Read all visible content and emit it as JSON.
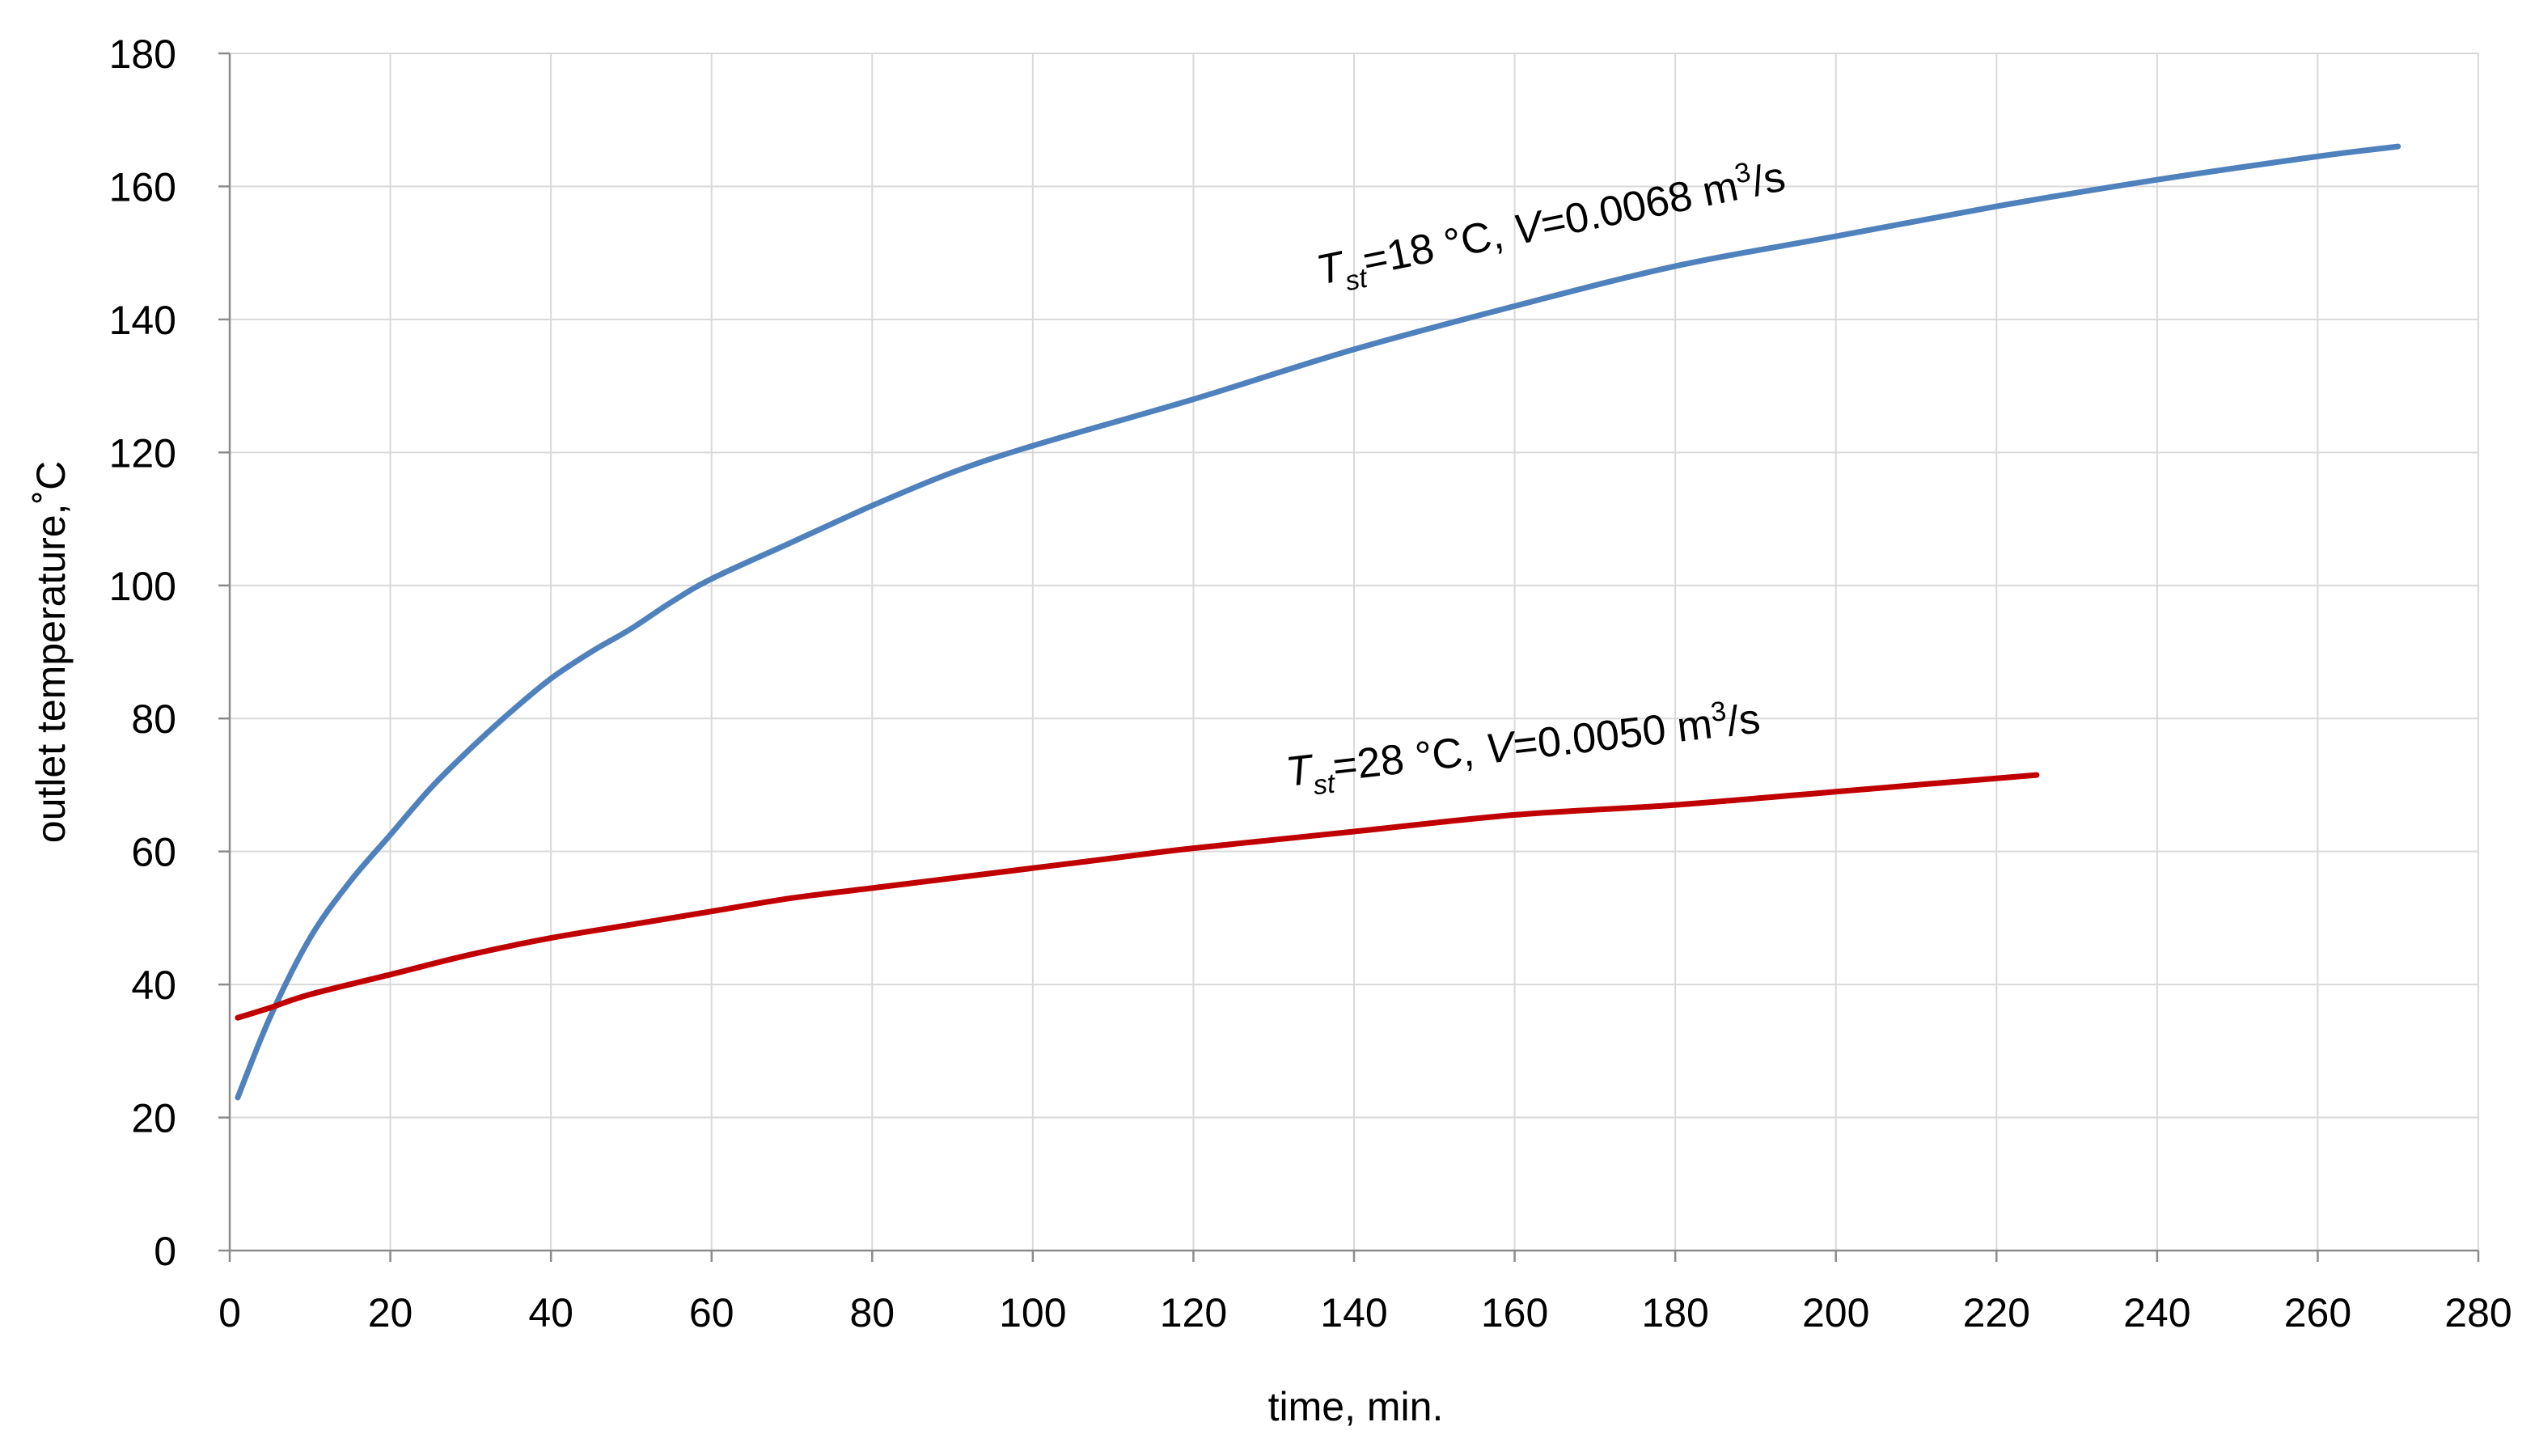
{
  "chart_data": {
    "type": "line",
    "xlabel": "time, min.",
    "ylabel": "outlet temperature,˚C",
    "xlim": [
      0,
      280
    ],
    "ylim": [
      0,
      180
    ],
    "xticks": [
      0,
      20,
      40,
      60,
      80,
      100,
      120,
      140,
      160,
      180,
      200,
      220,
      240,
      260,
      280
    ],
    "yticks": [
      0,
      20,
      40,
      60,
      80,
      100,
      120,
      140,
      160,
      180
    ],
    "grid": true,
    "series": [
      {
        "name": "Tst=18 °C, V=0.0068 m3/s",
        "color": "#4f81bd",
        "label": {
          "T": "T",
          "sub": "st",
          "mid": "=18 °C, ",
          "V": "V",
          "rest": "=0.0068 m",
          "sup": "3",
          "unit": "/s"
        },
        "x": [
          1,
          5,
          10,
          15,
          20,
          25,
          30,
          35,
          40,
          45,
          50,
          55,
          60,
          70,
          80,
          90,
          100,
          120,
          140,
          160,
          180,
          200,
          220,
          240,
          260,
          270
        ],
        "y": [
          23,
          35,
          47,
          55.5,
          62.5,
          69.5,
          75.5,
          81,
          86,
          90,
          93.5,
          97.5,
          101,
          106.5,
          112,
          117,
          121,
          128,
          135.5,
          142,
          148,
          152.5,
          157,
          161,
          164.5,
          166
        ]
      },
      {
        "name": "Tst=28 °C, V=0.0050 m3/s",
        "color": "#c00000",
        "label": {
          "T": "T",
          "sub": "st",
          "mid": "=28 °C, ",
          "V": "V",
          "rest": "=0.0050 m",
          "sup": "3",
          "unit": "/s"
        },
        "x": [
          1,
          5,
          10,
          20,
          30,
          40,
          50,
          60,
          70,
          80,
          90,
          100,
          110,
          120,
          140,
          160,
          180,
          200,
          210,
          225
        ],
        "y": [
          35,
          36.5,
          38.5,
          41.5,
          44.5,
          47,
          49,
          51,
          53,
          54.5,
          56,
          57.5,
          59,
          60.5,
          63,
          65.5,
          67,
          69,
          70,
          71.5
        ]
      }
    ]
  }
}
